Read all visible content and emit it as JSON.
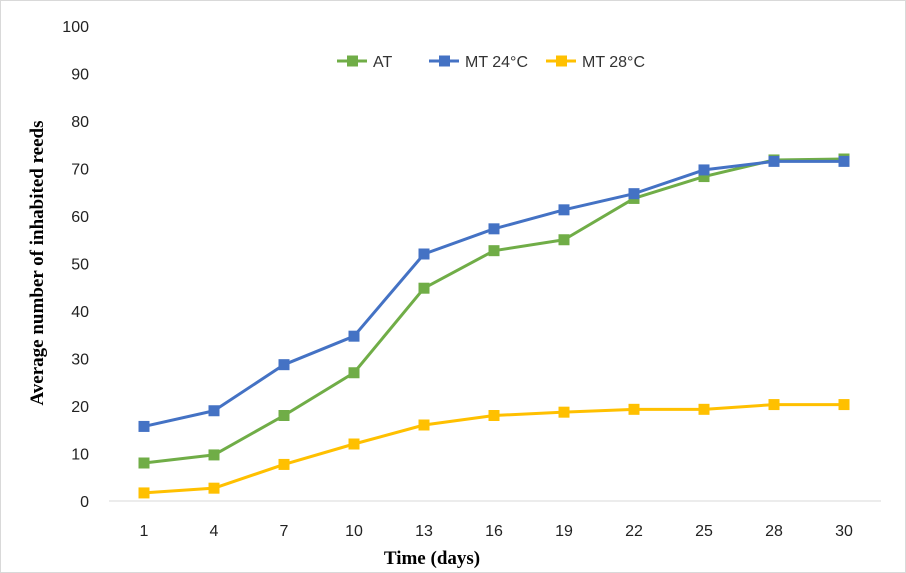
{
  "chart_data": {
    "type": "line",
    "title": "",
    "xlabel": "Time (days)",
    "ylabel": "Average number of inhabited reeds",
    "categories": [
      "1",
      "4",
      "7",
      "10",
      "13",
      "16",
      "19",
      "22",
      "25",
      "28",
      "30"
    ],
    "ylim": [
      0,
      100
    ],
    "yticks": [
      0,
      10,
      20,
      30,
      40,
      50,
      60,
      70,
      80,
      90,
      100
    ],
    "grid": false,
    "legend_position": "top-center",
    "series": [
      {
        "name": "AT",
        "color": "#70ad47",
        "values": [
          8,
          9.7,
          18,
          27,
          44.8,
          52.7,
          55,
          63.7,
          68.3,
          71.8,
          72
        ]
      },
      {
        "name": "MT 24°C",
        "color": "#4472c4",
        "values": [
          15.7,
          19,
          28.7,
          34.7,
          52,
          57.3,
          61.3,
          64.7,
          69.7,
          71.5,
          71.5
        ]
      },
      {
        "name": "MT 28°C",
        "color": "#ffc000",
        "values": [
          1.7,
          2.7,
          7.7,
          12,
          16,
          18,
          18.7,
          19.3,
          19.3,
          20.3,
          20.3
        ]
      }
    ]
  }
}
